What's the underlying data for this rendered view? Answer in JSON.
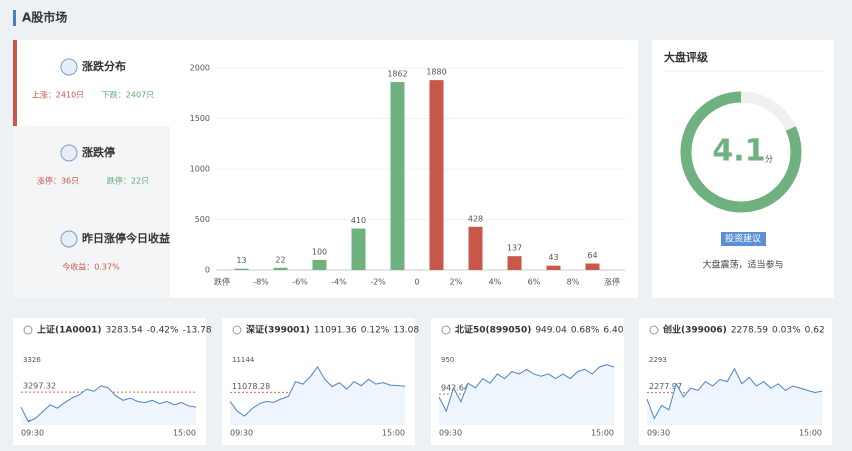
{
  "header": {
    "title": "A股市场"
  },
  "panel": {
    "items": [
      {
        "title": "涨跌分布",
        "stats": [
          {
            "text": "上涨：2410只",
            "color": "#c9574a"
          },
          {
            "text": "下跌：2407只",
            "color": "#5fa870"
          }
        ]
      },
      {
        "title": "涨跌停",
        "stats": [
          {
            "text": "涨停：36只",
            "color": "#c9574a"
          },
          {
            "text": "跌停：22只",
            "color": "#5fa870"
          }
        ]
      },
      {
        "title": "昨日涨停今日收益",
        "stats": [
          {
            "text": "今收益：0.37%",
            "color": "#c9574a"
          }
        ]
      }
    ]
  },
  "chart_data": {
    "type": "bar",
    "edge_labels": [
      "跌停",
      "-8%",
      "-6%",
      "-4%",
      "-2%",
      "0",
      "2%",
      "4%",
      "6%",
      "8%",
      "涨停"
    ],
    "values": [
      13,
      22,
      100,
      410,
      1862,
      1880,
      428,
      137,
      43,
      64
    ],
    "colors": [
      "#6fb27f",
      "#6fb27f",
      "#6fb27f",
      "#6fb27f",
      "#6fb27f",
      "#c9574a",
      "#c9574a",
      "#c9574a",
      "#c9574a",
      "#c9574a"
    ],
    "ylim": [
      0,
      2000
    ],
    "yticks": [
      0,
      500,
      1000,
      1500,
      2000
    ],
    "grid": true
  },
  "rating": {
    "title": "大盘评级",
    "score": 4.1,
    "unit": "分",
    "max": 5,
    "color": "#6fb27f",
    "button": "投资建议",
    "advice": "大盘震荡，适当参与"
  },
  "indices": [
    {
      "name": "上证(1A0001)",
      "price": "3283.54",
      "pct": "-0.42%",
      "chg": "-13.78",
      "ylim": [
        3268,
        3326
      ],
      "ref": 3297.32,
      "x_labels": [
        "09:30",
        "15:00"
      ],
      "values": [
        3284,
        3271,
        3274,
        3280,
        3286,
        3283,
        3288,
        3292,
        3295,
        3300,
        3298,
        3303,
        3301,
        3294,
        3290,
        3292,
        3289,
        3288,
        3290,
        3287,
        3289,
        3286,
        3288,
        3285,
        3284
      ]
    },
    {
      "name": "深证(399001)",
      "price": "11091.36",
      "pct": "0.12%",
      "chg": "13.08",
      "ylim": [
        11012,
        11144
      ],
      "ref": 11078.28,
      "x_labels": [
        "09:30",
        "15:00"
      ],
      "values": [
        11060,
        11040,
        11030,
        11045,
        11055,
        11060,
        11058,
        11065,
        11070,
        11100,
        11095,
        11110,
        11130,
        11105,
        11090,
        11098,
        11085,
        11100,
        11092,
        11105,
        11095,
        11098,
        11093,
        11092,
        11091
      ]
    },
    {
      "name": "北证50(899050)",
      "price": "949.04",
      "pct": "0.68%",
      "chg": "6.40",
      "ylim": [
        936,
        950
      ],
      "ref": 942.64,
      "x_labels": [
        "09:30",
        "15:00"
      ],
      "values": [
        942,
        939,
        944,
        941,
        945,
        944,
        946,
        945,
        947,
        946,
        947.5,
        947,
        948,
        947,
        946.5,
        947,
        946,
        947,
        946,
        947.5,
        948,
        947,
        948.5,
        949,
        948.5
      ]
    },
    {
      "name": "创业(399006)",
      "price": "2278.59",
      "pct": "0.03%",
      "chg": "0.62",
      "ylim": [
        2263,
        2293
      ],
      "ref": 2277.97,
      "x_labels": [
        "09:30",
        "15:00"
      ],
      "values": [
        2275,
        2266,
        2272,
        2270,
        2282,
        2276,
        2280,
        2279,
        2283,
        2281,
        2284,
        2283,
        2289,
        2282,
        2285,
        2281,
        2283,
        2280,
        2282,
        2279,
        2281,
        2280,
        2279,
        2278,
        2278.59
      ]
    }
  ]
}
